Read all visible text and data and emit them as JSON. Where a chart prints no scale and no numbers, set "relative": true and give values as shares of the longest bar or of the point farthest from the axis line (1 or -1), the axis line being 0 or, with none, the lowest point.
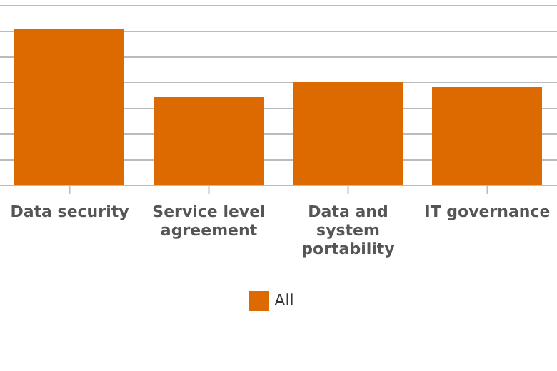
{
  "chart_data": {
    "type": "bar",
    "relative": true,
    "categories": [
      "Data security",
      "Service level agreement",
      "Data and system portability",
      "IT governance"
    ],
    "series": [
      {
        "name": "All",
        "color": "#dd6a00",
        "values": [
          1,
          0.565,
          0.661,
          0.629
        ]
      }
    ],
    "grid": "y",
    "legend": "bottom"
  }
}
